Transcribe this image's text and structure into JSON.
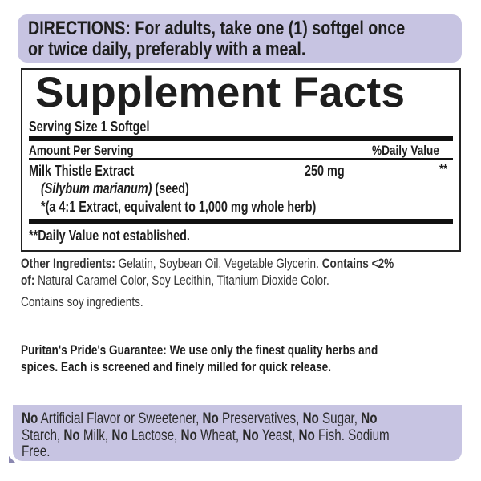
{
  "directions": {
    "line1": "DIRECTIONS: For adults, take one (1) softgel once",
    "line2": "or twice daily, preferably with a meal."
  },
  "facts": {
    "title": "Supplement Facts",
    "serving_size": "Serving Size 1 Softgel",
    "amount_header": "Amount Per Serving",
    "dv_header": "%Daily Value",
    "ingredient": {
      "name": "Milk Thistle Extract",
      "amount": "250 mg",
      "dv": "**",
      "latin": "(Silybum marianum)",
      "part": " (seed)",
      "note": "*(a 4:1 Extract, equivalent to 1,000 mg whole herb)"
    },
    "footnote": "**Daily Value not established."
  },
  "other": {
    "label": "Other Ingredients:",
    "text1": " Gelatin, Soybean Oil, Vegetable Glycerin. ",
    "contains_label": "Contains <2%",
    "of_label": "of:",
    "text2": " Natural Caramel Color, Soy Lecithin, Titanium Dioxide Color.",
    "soy": "Contains soy ingredients."
  },
  "guarantee": {
    "line1": "Puritan's Pride's Guarantee: We use only the finest quality herbs and",
    "line2": "spices. Each is screened and finely milled for quick release."
  },
  "free_from": {
    "no": "No",
    "l1": [
      " Artificial Flavor or Sweetener, ",
      " Preservatives, ",
      " Sugar, "
    ],
    "l2a": "Starch, ",
    "l2": [
      " Milk, ",
      " Lactose, ",
      " Wheat, ",
      " Yeast, ",
      " Fish. Sodium"
    ],
    "l3": "Free."
  },
  "colors": {
    "accent": "#c7c4e2",
    "text": "#1e1e1e"
  }
}
